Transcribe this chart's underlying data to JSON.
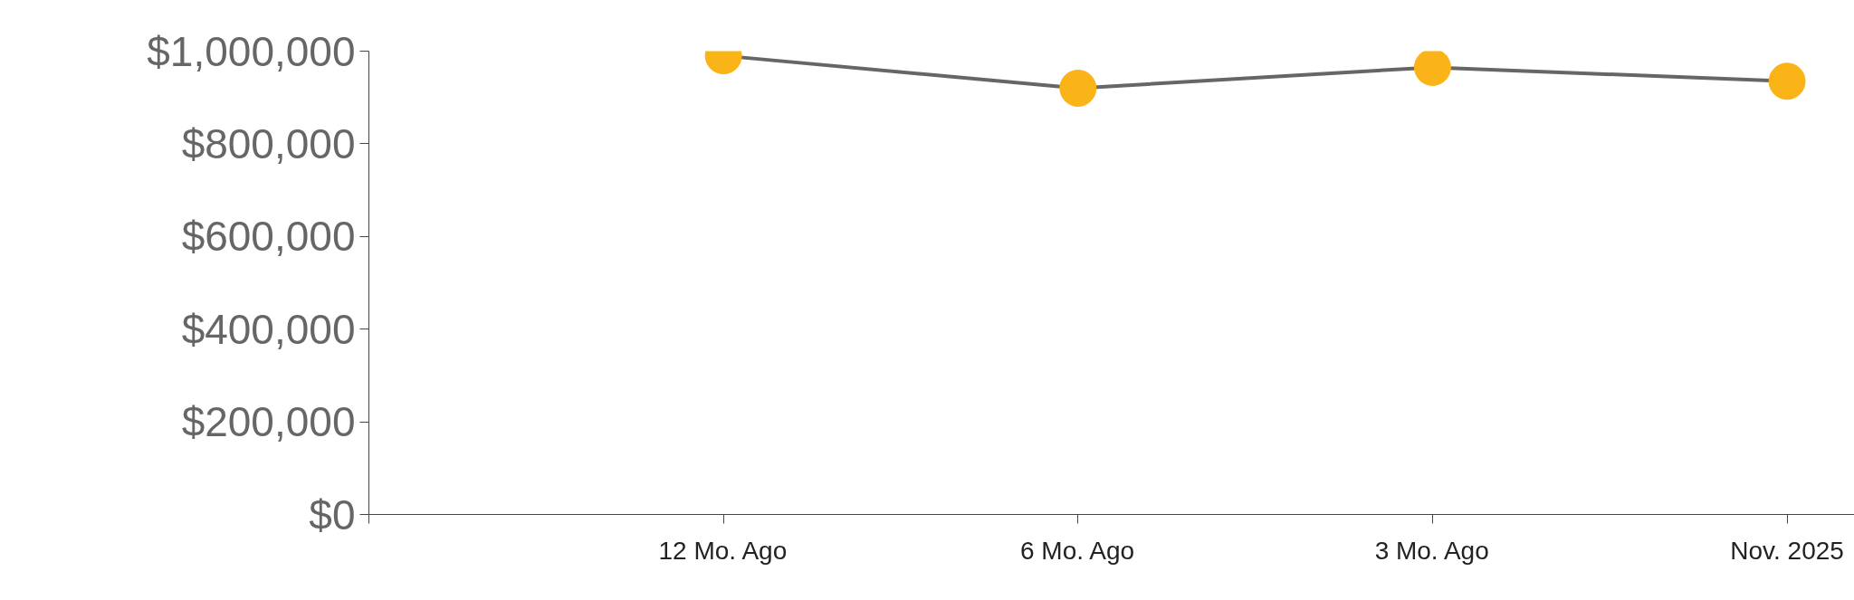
{
  "chart_data": {
    "type": "line",
    "categories": [
      null,
      "12 Mo. Ago",
      "6 Mo. Ago",
      "3 Mo. Ago",
      "Nov. 2025"
    ],
    "series": [
      {
        "color": "#fbb417",
        "values": [
          null,
          990000,
          920000,
          965000,
          935000
        ]
      }
    ],
    "ylim": [
      0,
      1000000
    ],
    "yticks": [
      {
        "value": 0,
        "label": "$0"
      },
      {
        "value": 200000,
        "label": "$200,000"
      },
      {
        "value": 400000,
        "label": "$400,000"
      },
      {
        "value": 600000,
        "label": "$600,000"
      },
      {
        "value": 800000,
        "label": "$800,000"
      },
      {
        "value": 1000000,
        "label": "$1,000,000"
      }
    ],
    "grid": false,
    "marker": "circle",
    "line_style": "solid"
  }
}
